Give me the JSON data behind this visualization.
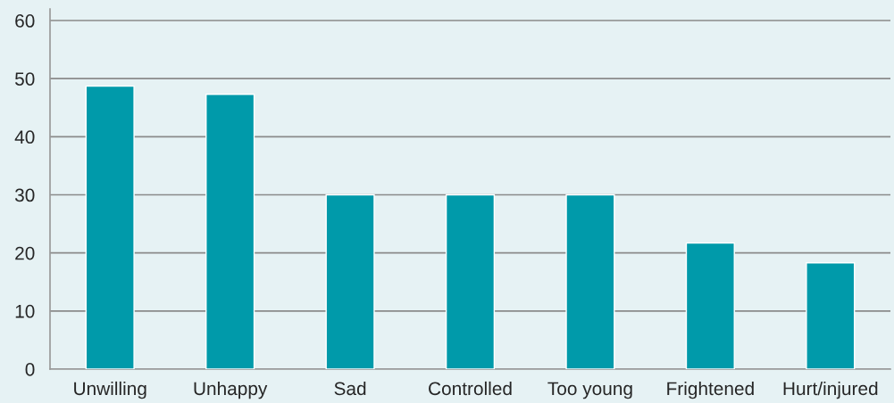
{
  "chart_data": {
    "type": "bar",
    "categories": [
      "Unwilling",
      "Unhappy",
      "Sad",
      "Controlled",
      "Too young",
      "Frightened",
      "Hurt/injured"
    ],
    "values": [
      48.7,
      47.3,
      30,
      30,
      30,
      21.7,
      18.3
    ],
    "color": "#009aaa",
    "ylim": [
      0,
      62
    ],
    "yticks": [
      0,
      10,
      20,
      30,
      40,
      50,
      60
    ],
    "grid": "y",
    "legend": false
  }
}
